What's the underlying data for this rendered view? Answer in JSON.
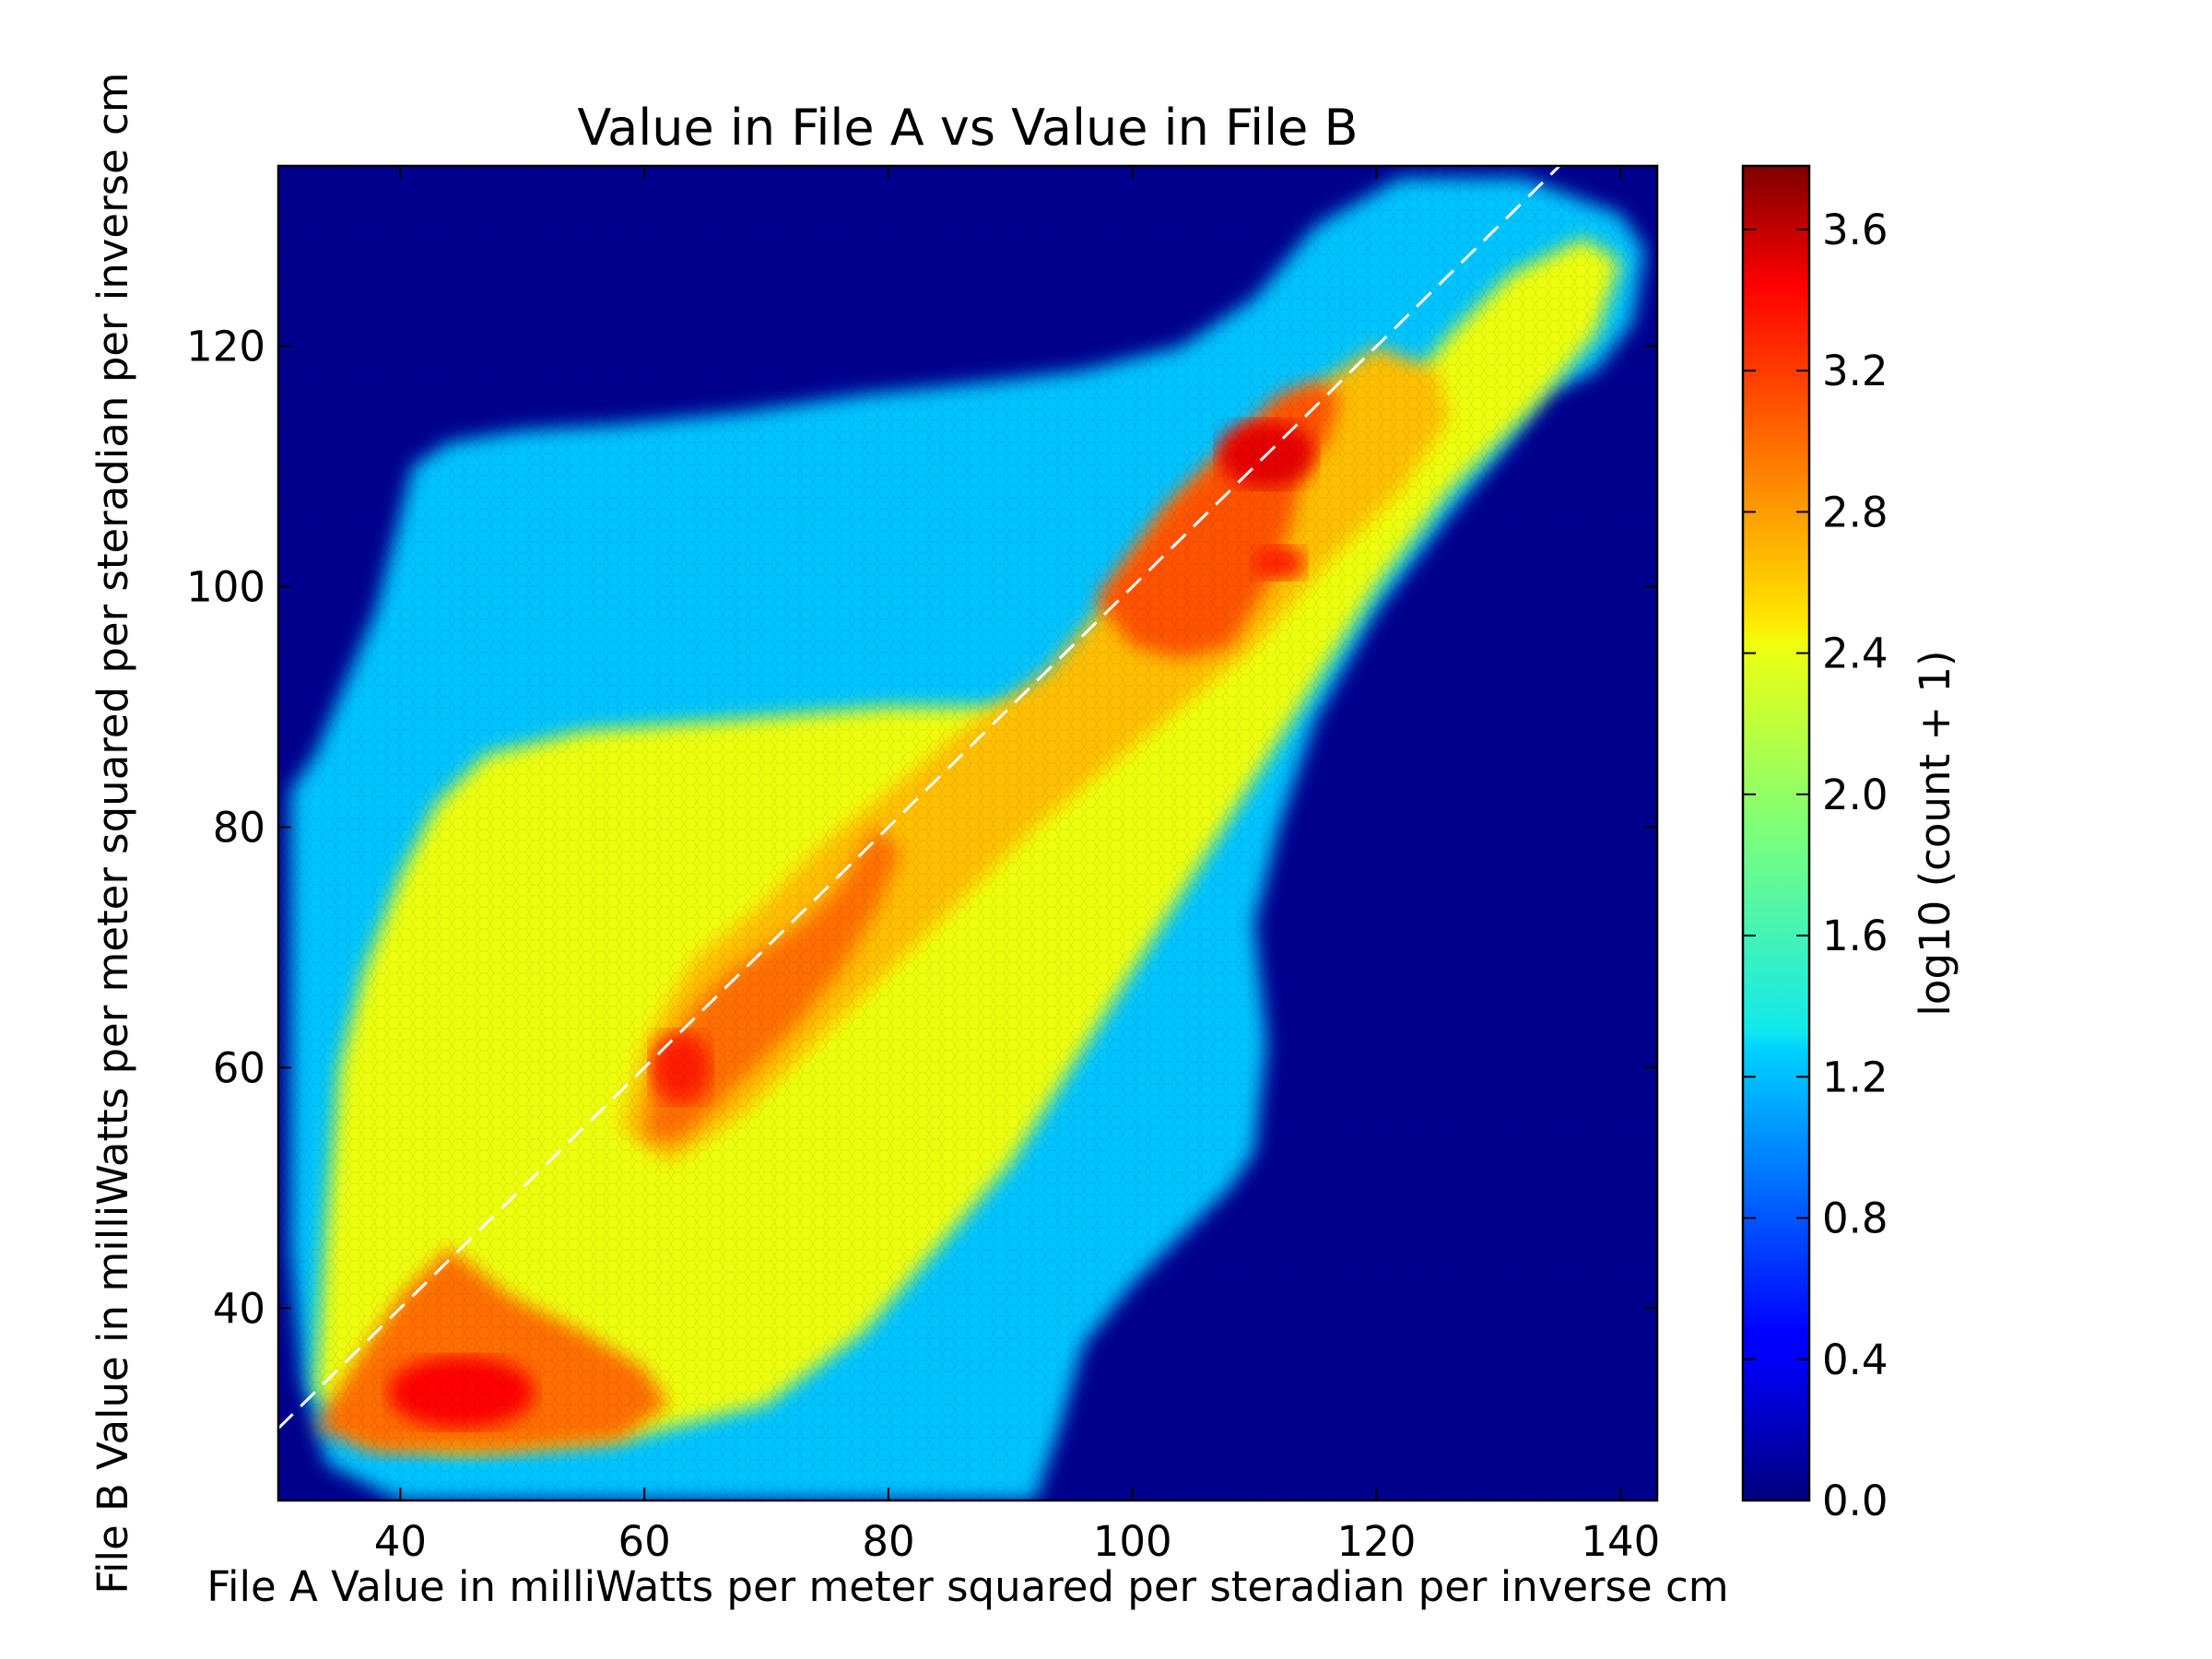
{
  "chart_data": {
    "type": "heatmap",
    "subtype": "hexbin",
    "title": "Value in File A vs Value in File B",
    "xlabel": "File A Value in milliWatts per meter squared per steradian per inverse cm",
    "ylabel": "File B Value in milliWatts per meter squared per steradian per inverse cm",
    "xlim": [
      30,
      143
    ],
    "ylim": [
      24,
      135
    ],
    "x_ticks": [
      40,
      60,
      80,
      100,
      120,
      140
    ],
    "y_ticks": [
      40,
      60,
      80,
      100,
      120
    ],
    "colorbar": {
      "label": "log10 (count + 1)",
      "range": [
        0.0,
        3.78
      ],
      "ticks": [
        "0.0",
        "0.4",
        "0.8",
        "1.2",
        "1.6",
        "2.0",
        "2.4",
        "2.8",
        "3.2",
        "3.6"
      ],
      "colormap": "jet"
    },
    "reference_line": {
      "style": "dashed",
      "color": "#ffffff",
      "x": [
        30,
        143
      ],
      "y": [
        30,
        143
      ]
    },
    "background_color": "#00008f",
    "density_regions": [
      {
        "shape": "polygon",
        "value": 1.2,
        "points": [
          [
            31,
            83
          ],
          [
            33,
            86
          ],
          [
            38,
            98
          ],
          [
            41,
            110
          ],
          [
            44,
            112
          ],
          [
            50,
            113
          ],
          [
            58,
            113.5
          ],
          [
            68,
            114.5
          ],
          [
            78,
            116
          ],
          [
            88,
            117
          ],
          [
            96,
            118
          ],
          [
            104,
            120
          ],
          [
            110,
            124
          ],
          [
            115,
            130
          ],
          [
            122,
            134
          ],
          [
            132,
            134
          ],
          [
            140,
            131
          ],
          [
            142,
            128
          ],
          [
            141,
            122
          ],
          [
            138,
            118
          ],
          [
            134,
            116
          ],
          [
            131,
            112
          ],
          [
            126,
            106
          ],
          [
            120,
            98
          ],
          [
            115,
            89
          ],
          [
            112,
            80
          ],
          [
            110,
            72
          ],
          [
            111,
            62
          ],
          [
            110,
            53
          ],
          [
            108,
            50
          ],
          [
            104,
            46
          ],
          [
            100,
            42
          ],
          [
            96,
            37
          ],
          [
            94,
            30
          ],
          [
            92,
            24
          ],
          [
            40,
            24
          ],
          [
            34,
            27
          ],
          [
            32,
            34
          ],
          [
            31,
            45
          ],
          [
            31,
            65
          ]
        ]
      },
      {
        "shape": "polygon",
        "value": 2.3,
        "points": [
          [
            33,
            33
          ],
          [
            34,
            48
          ],
          [
            35,
            60
          ],
          [
            37,
            68
          ],
          [
            40,
            76
          ],
          [
            43,
            82
          ],
          [
            47,
            86
          ],
          [
            55,
            88
          ],
          [
            68,
            89
          ],
          [
            80,
            90
          ],
          [
            90,
            90
          ],
          [
            97,
            92
          ],
          [
            100,
            96
          ],
          [
            104,
            104
          ],
          [
            108,
            108
          ],
          [
            113,
            111
          ],
          [
            118,
            112
          ],
          [
            122,
            116
          ],
          [
            126,
            121
          ],
          [
            131,
            126
          ],
          [
            137,
            129
          ],
          [
            140,
            127
          ],
          [
            138,
            121
          ],
          [
            133,
            115
          ],
          [
            126,
            108
          ],
          [
            120,
            100
          ],
          [
            115,
            92
          ],
          [
            110,
            84
          ],
          [
            105,
            76
          ],
          [
            100,
            68
          ],
          [
            95,
            60
          ],
          [
            90,
            52
          ],
          [
            84,
            45
          ],
          [
            78,
            38
          ],
          [
            70,
            32
          ],
          [
            58,
            29
          ],
          [
            45,
            28
          ],
          [
            37,
            29
          ]
        ]
      },
      {
        "shape": "polygon",
        "value": 2.6,
        "points": [
          [
            58,
            55
          ],
          [
            60,
            62
          ],
          [
            64,
            69
          ],
          [
            69,
            73
          ],
          [
            75,
            79
          ],
          [
            80,
            83
          ],
          [
            86,
            88
          ],
          [
            93,
            93
          ],
          [
            98,
            99
          ],
          [
            103,
            106
          ],
          [
            108,
            111
          ],
          [
            114,
            116
          ],
          [
            120,
            120
          ],
          [
            125,
            118
          ],
          [
            126,
            114
          ],
          [
            122,
            108
          ],
          [
            116,
            102
          ],
          [
            110,
            95
          ],
          [
            104,
            90
          ],
          [
            98,
            85
          ],
          [
            92,
            80
          ],
          [
            86,
            74
          ],
          [
            80,
            68
          ],
          [
            74,
            62
          ],
          [
            68,
            56
          ],
          [
            62,
            52
          ]
        ]
      },
      {
        "shape": "polygon",
        "value": 2.9,
        "points": [
          [
            33,
            30
          ],
          [
            36,
            35
          ],
          [
            40,
            41
          ],
          [
            44,
            45
          ],
          [
            49,
            41
          ],
          [
            55,
            38
          ],
          [
            60,
            35
          ],
          [
            62,
            32
          ],
          [
            58,
            29
          ],
          [
            48,
            28
          ],
          [
            38,
            28
          ]
        ]
      },
      {
        "shape": "polygon",
        "value": 2.9,
        "points": [
          [
            60,
            54
          ],
          [
            61,
            60
          ],
          [
            64,
            65
          ],
          [
            67,
            68
          ],
          [
            70,
            70
          ],
          [
            73,
            72
          ],
          [
            76,
            75
          ],
          [
            79,
            80
          ],
          [
            81,
            78
          ],
          [
            79,
            73
          ],
          [
            76,
            68
          ],
          [
            72,
            63
          ],
          [
            69,
            60
          ],
          [
            66,
            57
          ],
          [
            63,
            54
          ]
        ]
      },
      {
        "shape": "polygon",
        "value": 3.0,
        "points": [
          [
            97,
            99
          ],
          [
            100,
            103
          ],
          [
            103,
            107
          ],
          [
            106,
            110
          ],
          [
            109,
            113
          ],
          [
            112,
            116
          ],
          [
            115,
            117
          ],
          [
            117,
            116
          ],
          [
            116,
            112
          ],
          [
            114,
            110
          ],
          [
            113,
            105
          ],
          [
            111,
            100
          ],
          [
            108,
            95
          ],
          [
            104,
            94
          ],
          [
            100,
            95
          ]
        ]
      },
      {
        "shape": "ellipse",
        "value": 3.4,
        "cx": 111,
        "cy": 111,
        "rx": 4,
        "ry": 2.8
      },
      {
        "shape": "ellipse",
        "value": 3.2,
        "cx": 112,
        "cy": 102,
        "rx": 2.2,
        "ry": 1.4
      },
      {
        "shape": "ellipse",
        "value": 3.3,
        "cx": 45,
        "cy": 33,
        "rx": 6,
        "ry": 3
      },
      {
        "shape": "ellipse",
        "value": 3.2,
        "cx": 63,
        "cy": 60,
        "rx": 2.5,
        "ry": 3
      }
    ]
  }
}
